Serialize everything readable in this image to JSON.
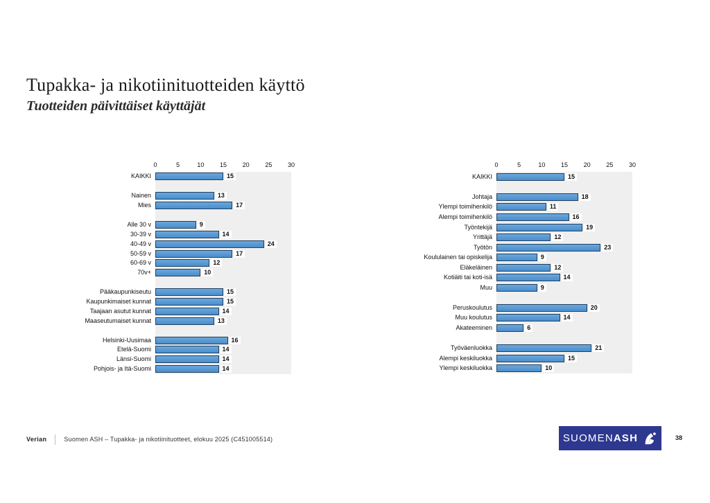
{
  "slide": {
    "title": "Tupakka- ja nikotiinituotteiden käyttö",
    "subtitle": "Tuotteiden päivittäiset käyttäjät",
    "page_number": "38"
  },
  "footer": {
    "brand": "Verian",
    "source": "Suomen ASH – Tupakka- ja nikotiinituotteet, elokuu 2025 (C451005514)",
    "logo_text_light": "SUOMEN",
    "logo_text_bold": "ASH"
  },
  "colors": {
    "bar_fill": "#4A8ECD",
    "bar_border": "#20405F",
    "plot_background": "#EFEFEF",
    "logo_background": "#2E3890"
  },
  "chart_data": [
    {
      "type": "bar",
      "orientation": "horizontal",
      "xlim": [
        0,
        30
      ],
      "ticks": [
        0,
        5,
        10,
        15,
        20,
        25,
        30
      ],
      "grid": false,
      "groups": [
        {
          "items": [
            {
              "label": "KAIKKI",
              "value": 15
            }
          ]
        },
        {
          "items": [
            {
              "label": "Nainen",
              "value": 13
            },
            {
              "label": "Mies",
              "value": 17
            }
          ]
        },
        {
          "items": [
            {
              "label": "Alle 30 v",
              "value": 9
            },
            {
              "label": "30-39 v",
              "value": 14
            },
            {
              "label": "40-49 v",
              "value": 24
            },
            {
              "label": "50-59 v",
              "value": 17
            },
            {
              "label": "60-69 v",
              "value": 12
            },
            {
              "label": "70v+",
              "value": 10
            }
          ]
        },
        {
          "items": [
            {
              "label": "Pääkaupunkiseutu",
              "value": 15
            },
            {
              "label": "Kaupunkimaiset kunnat",
              "value": 15
            },
            {
              "label": "Taajaan asutut kunnat",
              "value": 14
            },
            {
              "label": "Maaseutumaiset kunnat",
              "value": 13
            }
          ]
        },
        {
          "items": [
            {
              "label": "Helsinki-Uusimaa",
              "value": 16
            },
            {
              "label": "Etelä-Suomi",
              "value": 14
            },
            {
              "label": "Länsi-Suomi",
              "value": 14
            },
            {
              "label": "Pohjois- ja Itä-Suomi",
              "value": 14
            }
          ]
        }
      ]
    },
    {
      "type": "bar",
      "orientation": "horizontal",
      "xlim": [
        0,
        30
      ],
      "ticks": [
        0,
        5,
        10,
        15,
        20,
        25,
        30
      ],
      "grid": false,
      "groups": [
        {
          "items": [
            {
              "label": "KAIKKI",
              "value": 15
            }
          ]
        },
        {
          "items": [
            {
              "label": "Johtaja",
              "value": 18
            },
            {
              "label": "Ylempi toimihenkilö",
              "value": 11
            },
            {
              "label": "Alempi toimihenkilö",
              "value": 16
            },
            {
              "label": "Työntekijä",
              "value": 19
            },
            {
              "label": "Yrittäjä",
              "value": 12
            },
            {
              "label": "Työtön",
              "value": 23
            },
            {
              "label": "Koululainen tai opiskelija",
              "value": 9
            },
            {
              "label": "Eläkeläinen",
              "value": 12
            },
            {
              "label": "Kotiäiti tai koti-isä",
              "value": 14
            },
            {
              "label": "Muu",
              "value": 9
            }
          ]
        },
        {
          "items": [
            {
              "label": "Peruskoulutus",
              "value": 20
            },
            {
              "label": "Muu koulutus",
              "value": 14
            },
            {
              "label": "Akateeminen",
              "value": 6
            }
          ]
        },
        {
          "items": [
            {
              "label": "Työväenluokka",
              "value": 21
            },
            {
              "label": "Alempi keskiluokka",
              "value": 15
            },
            {
              "label": "Ylempi keskiluokka",
              "value": 10
            }
          ]
        }
      ]
    }
  ]
}
